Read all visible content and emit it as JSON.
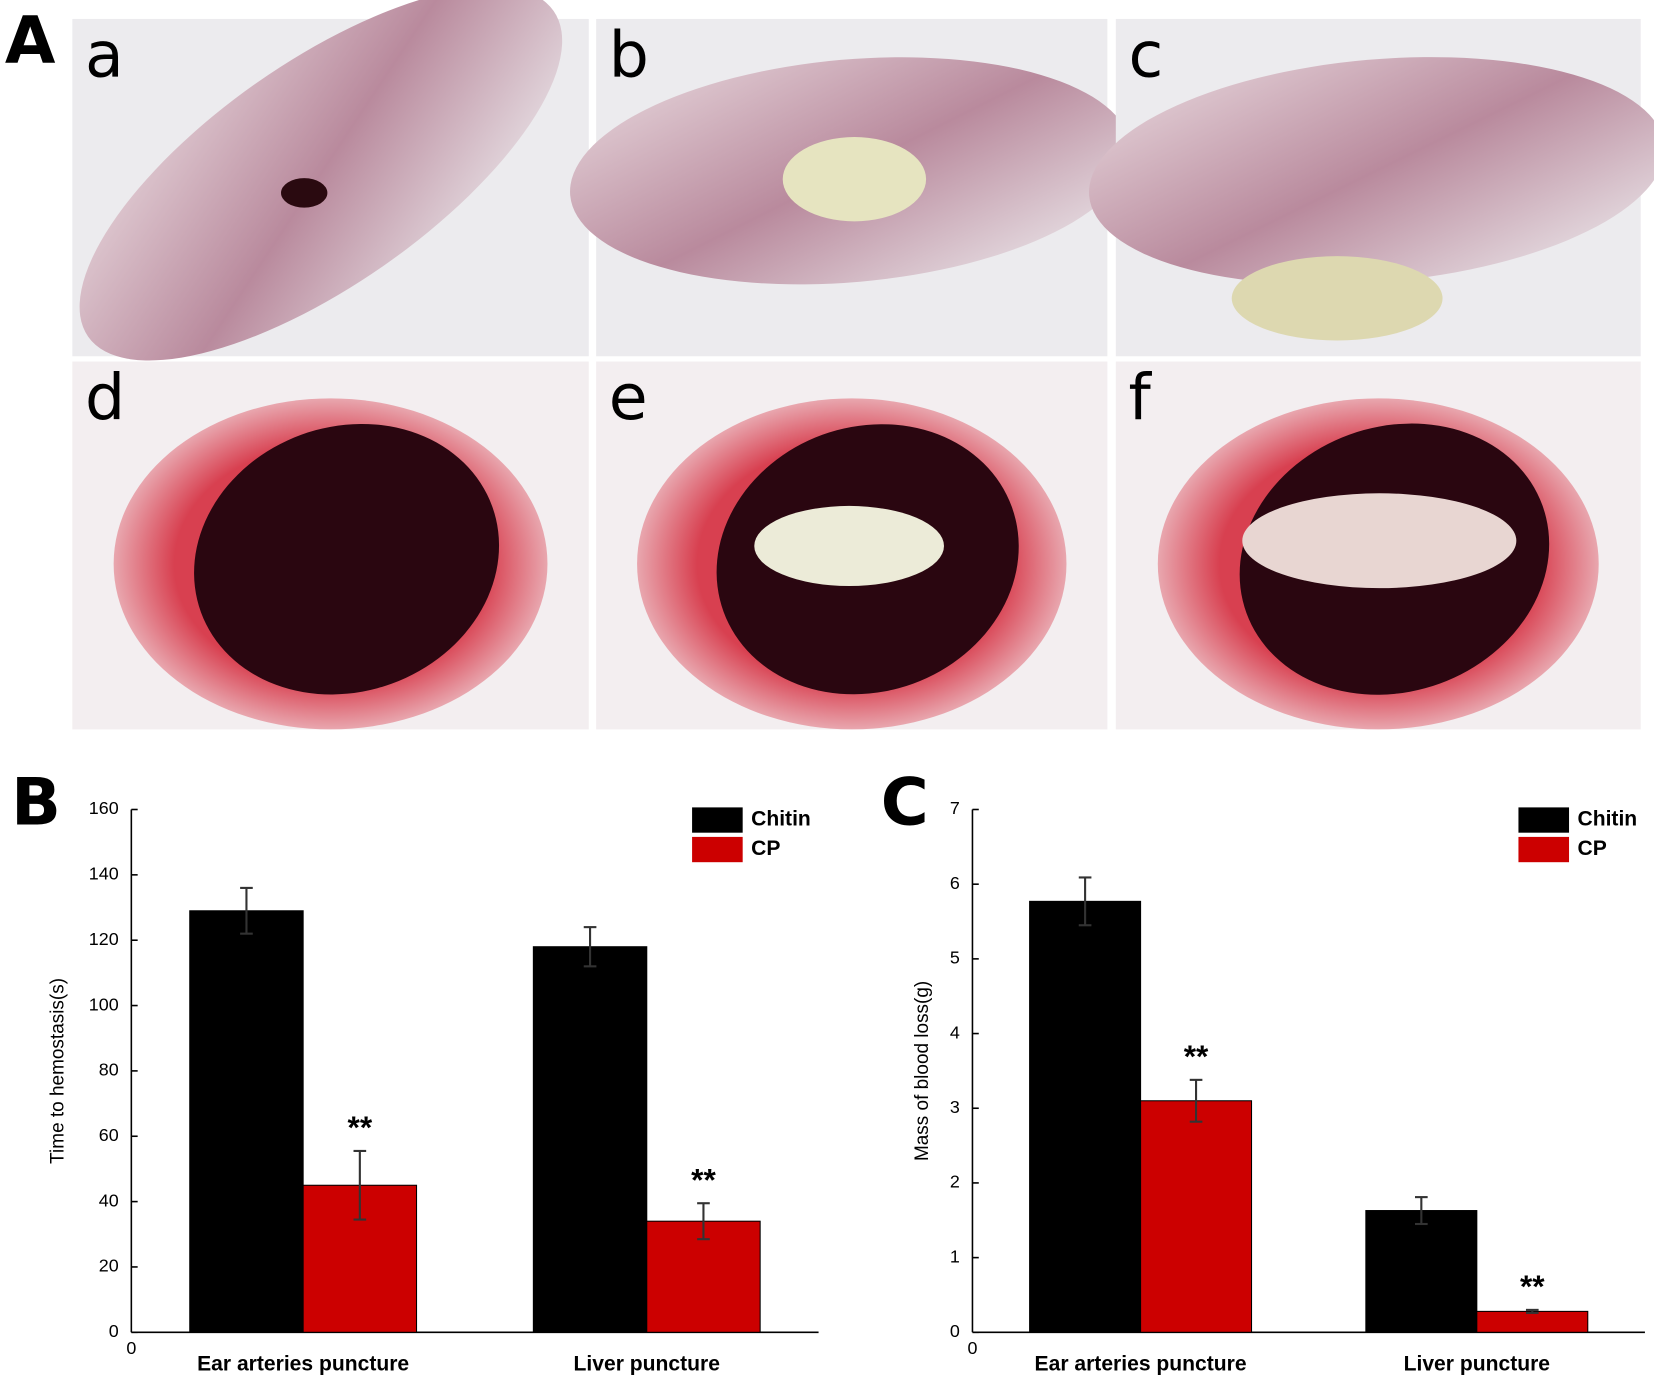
{
  "panel_label": "A",
  "photos": {
    "labels": [
      "a",
      "b",
      "c",
      "d",
      "e",
      "f"
    ]
  },
  "chart_data": [
    {
      "type": "bar",
      "panel_label": "B",
      "ylabel": "Time to hemostasis(s)",
      "categories": [
        "Ear arteries puncture",
        "Liver puncture"
      ],
      "series": [
        {
          "name": "Chitin",
          "color": "#000000",
          "values": [
            129,
            118
          ],
          "errors": [
            7,
            6
          ]
        },
        {
          "name": "CP",
          "color": "#cc0000",
          "values": [
            45,
            34
          ],
          "errors": [
            10.5,
            5.5
          ],
          "significance": [
            "**",
            "**"
          ]
        }
      ],
      "ylim": [
        0,
        160
      ],
      "yticks": [
        0,
        20,
        40,
        60,
        80,
        100,
        120,
        140,
        160
      ],
      "origin_label": "0",
      "legend": "upper right"
    },
    {
      "type": "bar",
      "panel_label": "C",
      "ylabel": "Mass of blood loss(g)",
      "categories": [
        "Ear arteries puncture",
        "Liver puncture"
      ],
      "series": [
        {
          "name": "Chitin",
          "color": "#000000",
          "values": [
            5.77,
            1.63
          ],
          "errors": [
            0.32,
            0.18
          ]
        },
        {
          "name": "CP",
          "color": "#cc0000",
          "values": [
            3.1,
            0.28
          ],
          "errors": [
            0.28,
            0.02
          ],
          "significance": [
            "**",
            "**"
          ]
        }
      ],
      "ylim": [
        0,
        7
      ],
      "yticks": [
        0,
        1,
        2,
        3,
        4,
        5,
        6,
        7
      ],
      "origin_label": "0",
      "legend": "upper right"
    }
  ]
}
